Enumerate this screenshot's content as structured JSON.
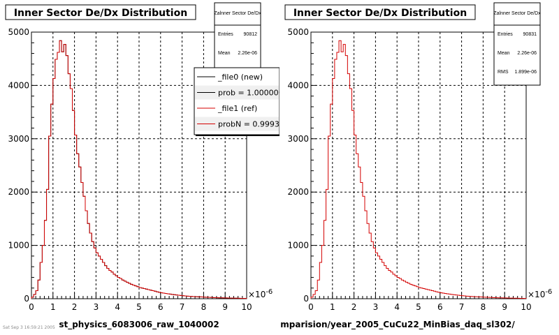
{
  "footer_text": "Sat Sep  3 16:59:21 2005",
  "chart_data": [
    {
      "type": "bar",
      "title": "Inner Sector De/Dx Distribution",
      "xlabel": "st_physics_6083006_raw_1040002",
      "ylabel": "",
      "xlim": [
        0,
        10
      ],
      "ylim": [
        0,
        5000
      ],
      "x_exponent_label": "×10",
      "x_exponent_power": "-6",
      "xticks": [
        "0",
        "1",
        "2",
        "3",
        "4",
        "5",
        "6",
        "7",
        "8",
        "9",
        "10"
      ],
      "yticks": [
        "0",
        "1000",
        "2000",
        "3000",
        "4000",
        "5000"
      ],
      "grid": true,
      "bin_edges_start": 0,
      "bin_width": 0.1,
      "series": [
        {
          "name": "_file0 (new)",
          "color": "#000000",
          "values": [
            30,
            80,
            150,
            350,
            680,
            1000,
            1470,
            2050,
            3050,
            3650,
            4130,
            4490,
            4620,
            4840,
            4630,
            4770,
            4560,
            4220,
            3940,
            3530,
            3070,
            2720,
            2470,
            2180,
            1920,
            1650,
            1410,
            1230,
            1070,
            950,
            860,
            800,
            740,
            680,
            620,
            570,
            530,
            500,
            460,
            430,
            400,
            380,
            350,
            330,
            310,
            290,
            270,
            255,
            240,
            225,
            210,
            200,
            190,
            180,
            170,
            160,
            150,
            140,
            130,
            120,
            112,
            105,
            98,
            92,
            86,
            80,
            75,
            70,
            65,
            60,
            56,
            52,
            48,
            45,
            42,
            40,
            38,
            36,
            34,
            32,
            30,
            28,
            26,
            24,
            22,
            20,
            18,
            17,
            16,
            15,
            14,
            13,
            12,
            11,
            10,
            9,
            8,
            7,
            6,
            5
          ]
        },
        {
          "name": "_file1 (ref)",
          "color": "#d40000",
          "values": [
            30,
            80,
            150,
            350,
            680,
            1000,
            1470,
            2050,
            3050,
            3650,
            4130,
            4490,
            4620,
            4840,
            4630,
            4770,
            4560,
            4220,
            3940,
            3530,
            3070,
            2720,
            2470,
            2180,
            1920,
            1650,
            1410,
            1230,
            1070,
            950,
            860,
            800,
            740,
            680,
            620,
            570,
            530,
            500,
            460,
            430,
            400,
            380,
            350,
            330,
            310,
            290,
            270,
            255,
            240,
            225,
            210,
            200,
            190,
            180,
            170,
            160,
            150,
            140,
            130,
            120,
            112,
            105,
            98,
            92,
            86,
            80,
            75,
            70,
            65,
            60,
            56,
            52,
            48,
            45,
            42,
            40,
            38,
            36,
            34,
            32,
            30,
            28,
            26,
            24,
            22,
            20,
            18,
            17,
            16,
            15,
            14,
            13,
            12,
            11,
            10,
            9,
            8,
            7,
            6,
            5
          ]
        }
      ],
      "stats_box": {
        "title": "Zalnner Sector De/Dx",
        "rows": [
          {
            "label": "Entries",
            "value": "90812"
          },
          {
            "label": "Mean",
            "value": "2.26e-06"
          }
        ]
      },
      "legend": {
        "placement": "top-right",
        "entries": [
          {
            "text": "_file0 (new)",
            "color": "#000000"
          },
          {
            "text": "prob = 1.000000",
            "color": "#000000"
          },
          {
            "text": "_file1 (ref)",
            "color": "#d40000"
          },
          {
            "text": "probN = 0.99934",
            "color": "#d40000"
          }
        ]
      }
    },
    {
      "type": "bar",
      "title": "Inner Sector De/Dx Distribution",
      "xlabel": "mparision/year_2005_CuCu22_MinBias_daq_sl302/",
      "ylabel": "",
      "xlim": [
        0,
        10
      ],
      "ylim": [
        0,
        5000
      ],
      "x_exponent_label": "×10",
      "x_exponent_power": "-6",
      "xticks": [
        "0",
        "1",
        "2",
        "3",
        "4",
        "5",
        "6",
        "7",
        "8",
        "9",
        "10"
      ],
      "yticks": [
        "0",
        "1000",
        "2000",
        "3000",
        "4000",
        "5000"
      ],
      "grid": true,
      "bin_edges_start": 0,
      "bin_width": 0.1,
      "series": [
        {
          "name": "",
          "color": "#d40000",
          "values": [
            30,
            80,
            150,
            350,
            680,
            1000,
            1470,
            2050,
            3050,
            3650,
            4130,
            4490,
            4620,
            4840,
            4630,
            4770,
            4560,
            4220,
            3940,
            3530,
            3070,
            2720,
            2470,
            2180,
            1920,
            1650,
            1410,
            1230,
            1070,
            950,
            860,
            800,
            740,
            680,
            620,
            570,
            530,
            500,
            460,
            430,
            400,
            380,
            350,
            330,
            310,
            290,
            270,
            255,
            240,
            225,
            210,
            200,
            190,
            180,
            170,
            160,
            150,
            140,
            130,
            120,
            112,
            105,
            98,
            92,
            86,
            80,
            75,
            70,
            65,
            60,
            56,
            52,
            48,
            45,
            42,
            40,
            38,
            36,
            34,
            32,
            30,
            28,
            26,
            24,
            22,
            20,
            18,
            17,
            16,
            15,
            14,
            13,
            12,
            11,
            10,
            9,
            8,
            7,
            6,
            5
          ]
        }
      ],
      "stats_box": {
        "title": "Zalnner Sector De/Dx",
        "rows": [
          {
            "label": "Entries",
            "value": "90831"
          },
          {
            "label": "Mean",
            "value": "2.26e-06"
          },
          {
            "label": "RMS",
            "value": "1.899e-06"
          }
        ]
      }
    }
  ]
}
